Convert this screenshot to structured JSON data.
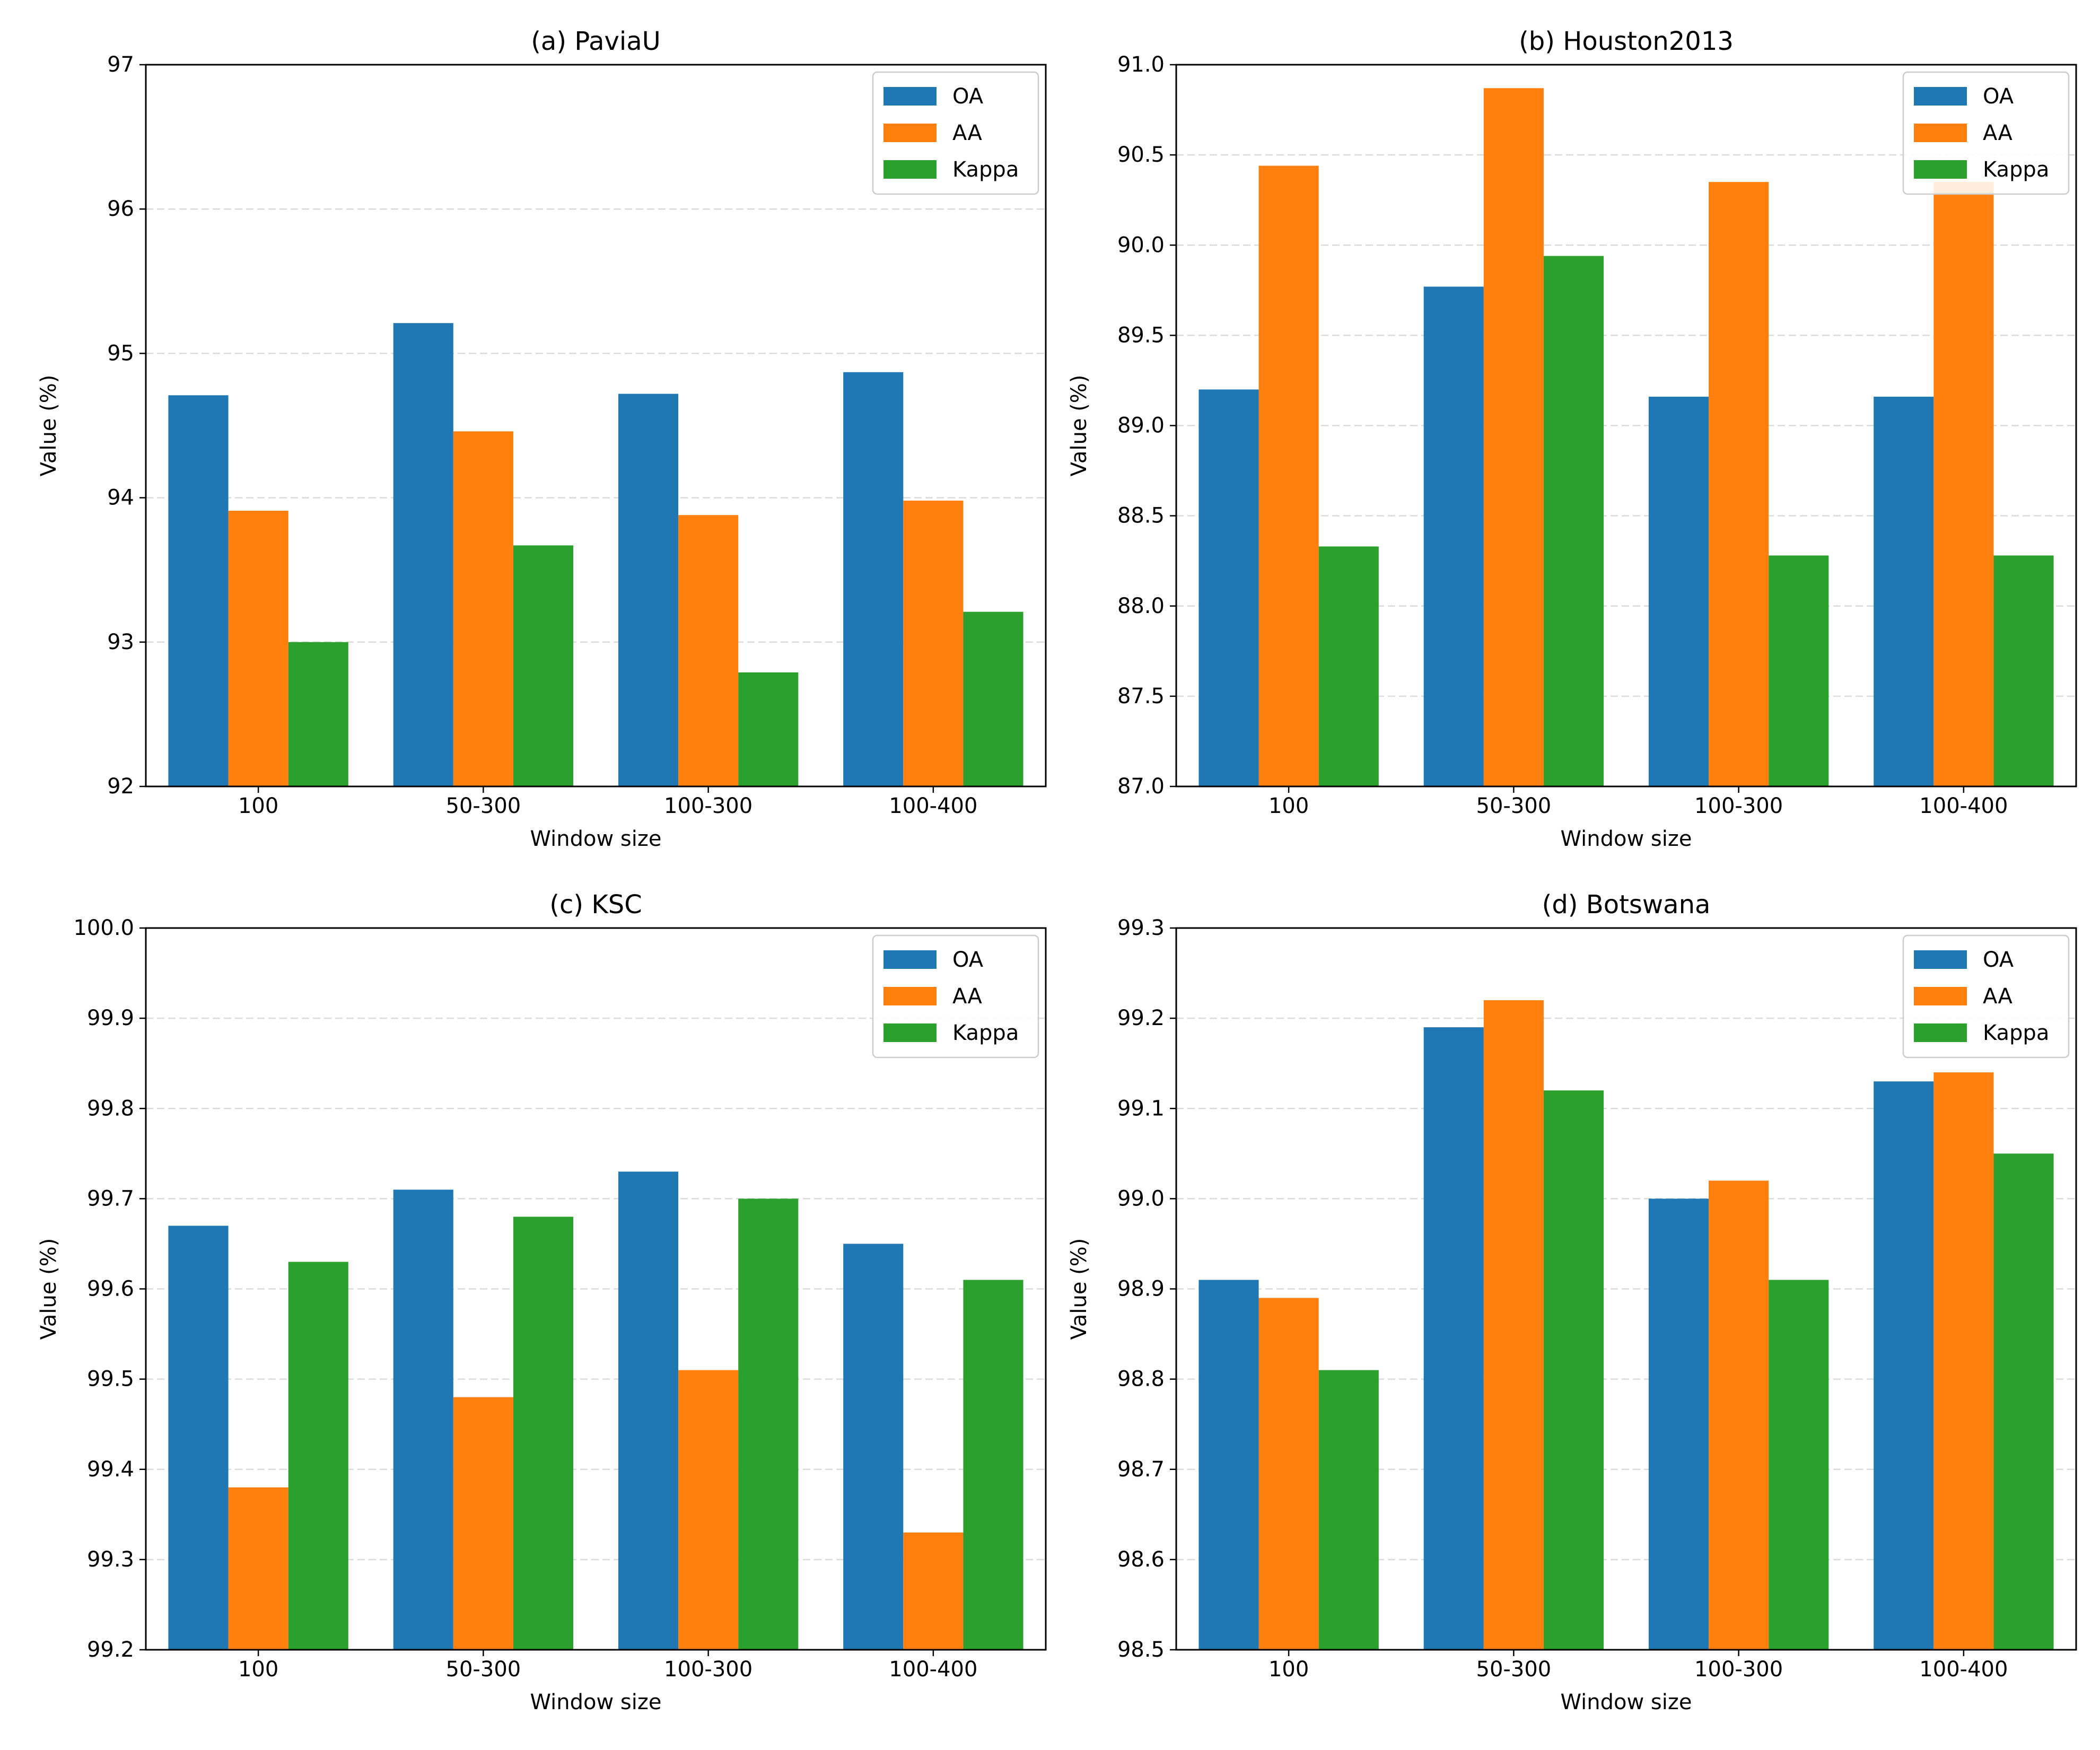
{
  "chart_data": [
    {
      "type": "bar",
      "title": "(a) PaviaU",
      "xlabel": "Window size",
      "ylabel": "Value (%)",
      "categories": [
        "100",
        "50-300",
        "100-300",
        "100-400"
      ],
      "ylim": [
        92,
        97
      ],
      "yticks": [
        "92",
        "93",
        "94",
        "95",
        "96",
        "97"
      ],
      "grid": "y-dashed",
      "legend_position": "top-right",
      "series": [
        {
          "name": "OA",
          "color": "#1f77b4",
          "values": [
            94.71,
            95.21,
            94.72,
            94.87
          ]
        },
        {
          "name": "AA",
          "color": "#ff7f0e",
          "values": [
            93.91,
            94.46,
            93.88,
            93.98
          ]
        },
        {
          "name": "Kappa",
          "color": "#2ca02c",
          "values": [
            93.0,
            93.67,
            92.79,
            93.21
          ]
        }
      ]
    },
    {
      "type": "bar",
      "title": "(b) Houston2013",
      "xlabel": "Window size",
      "ylabel": "Value (%)",
      "categories": [
        "100",
        "50-300",
        "100-300",
        "100-400"
      ],
      "ylim": [
        87,
        91
      ],
      "yticks": [
        "87.0",
        "87.5",
        "88.0",
        "88.5",
        "89.0",
        "89.5",
        "90.0",
        "90.5",
        "91.0"
      ],
      "grid": "y-dashed",
      "legend_position": "top-right",
      "series": [
        {
          "name": "OA",
          "color": "#1f77b4",
          "values": [
            89.2,
            89.77,
            89.16,
            89.16
          ]
        },
        {
          "name": "AA",
          "color": "#ff7f0e",
          "values": [
            90.44,
            90.87,
            90.35,
            90.35
          ]
        },
        {
          "name": "Kappa",
          "color": "#2ca02c",
          "values": [
            88.33,
            89.94,
            88.28,
            88.28
          ]
        }
      ]
    },
    {
      "type": "bar",
      "title": "(c) KSC",
      "xlabel": "Window size",
      "ylabel": "Value (%)",
      "categories": [
        "100",
        "50-300",
        "100-300",
        "100-400"
      ],
      "ylim": [
        99.2,
        100.0
      ],
      "yticks": [
        "99.2",
        "99.3",
        "99.4",
        "99.5",
        "99.6",
        "99.7",
        "99.8",
        "99.9",
        "100.0"
      ],
      "grid": "y-dashed",
      "legend_position": "top-right",
      "series": [
        {
          "name": "OA",
          "color": "#1f77b4",
          "values": [
            99.67,
            99.71,
            99.73,
            99.65
          ]
        },
        {
          "name": "AA",
          "color": "#ff7f0e",
          "values": [
            99.38,
            99.48,
            99.51,
            99.33
          ]
        },
        {
          "name": "Kappa",
          "color": "#2ca02c",
          "values": [
            99.63,
            99.68,
            99.7,
            99.61
          ]
        }
      ]
    },
    {
      "type": "bar",
      "title": "(d) Botswana",
      "xlabel": "Window size",
      "ylabel": "Value (%)",
      "categories": [
        "100",
        "50-300",
        "100-300",
        "100-400"
      ],
      "ylim": [
        98.5,
        99.3
      ],
      "yticks": [
        "98.5",
        "98.6",
        "98.7",
        "98.8",
        "98.9",
        "99.0",
        "99.1",
        "99.2",
        "99.3"
      ],
      "grid": "y-dashed",
      "legend_position": "top-right",
      "series": [
        {
          "name": "OA",
          "color": "#1f77b4",
          "values": [
            98.91,
            99.19,
            99.0,
            99.13
          ]
        },
        {
          "name": "AA",
          "color": "#ff7f0e",
          "values": [
            98.89,
            99.22,
            99.02,
            99.14
          ]
        },
        {
          "name": "Kappa",
          "color": "#2ca02c",
          "values": [
            98.81,
            99.12,
            98.91,
            99.05
          ]
        }
      ]
    }
  ]
}
